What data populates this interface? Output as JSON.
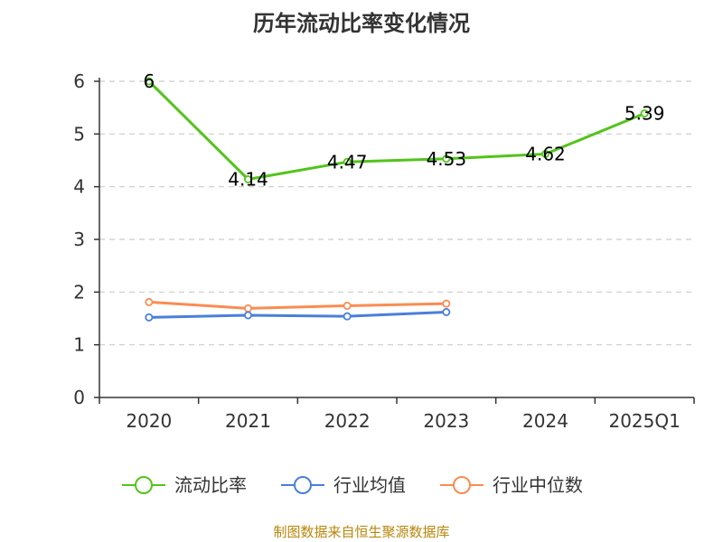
{
  "chart_data": {
    "type": "line",
    "title": "历年流动比率变化情况",
    "categories": [
      "2020",
      "2021",
      "2022",
      "2023",
      "2024",
      "2025Q1"
    ],
    "ylim": [
      0,
      6
    ],
    "yticks": [
      0,
      1,
      2,
      3,
      4,
      5,
      6
    ],
    "grid": true,
    "legend_position": "bottom",
    "series": [
      {
        "name": "流动比率",
        "color": "#52c41a",
        "values": [
          6,
          4.14,
          4.47,
          4.53,
          4.62,
          5.39
        ],
        "labels": [
          "6",
          "4.14",
          "4.47",
          "4.53",
          "4.62",
          "5.39"
        ]
      },
      {
        "name": "行业均值",
        "color": "#4a7fdb",
        "values": [
          1.52,
          1.56,
          1.54,
          1.62,
          null,
          null
        ]
      },
      {
        "name": "行业中位数",
        "color": "#fa8c52",
        "values": [
          1.81,
          1.69,
          1.74,
          1.78,
          null,
          null
        ]
      }
    ]
  },
  "footer": {
    "source": "制图数据来自恒生聚源数据库"
  }
}
